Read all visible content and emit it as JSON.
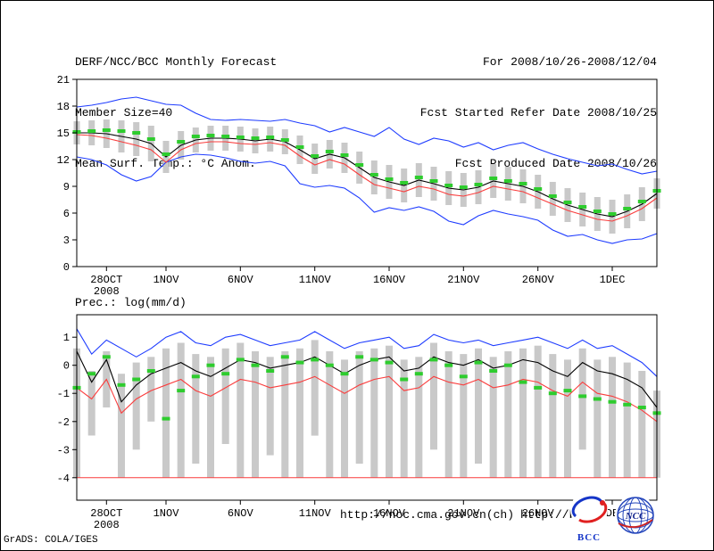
{
  "header": {
    "title": "DERF/NCC/BCC Monthly Forecast",
    "member_size": "Member Size=40",
    "temp_label": "Mean Surf. Temp.: °C Anom.",
    "for_range": "For 2008/10/26-2008/12/04",
    "refer_date": "Fcst Started Refer Date 2008/10/25",
    "produced_date": "Fcst Produced Date 2008/10/26"
  },
  "precip_label": "Prec.: log(mm/d)",
  "footer": {
    "grads_credit": "GrADS: COLA/IGES",
    "url_ncc": "http://ncc.cma.gov.cn(ch)",
    "url_bcc": "http://bcc.c",
    "bcc_logo_text": "BCC",
    "ncc_logo_text": "NCC"
  },
  "colors": {
    "envelope_blue": "#1e3cff",
    "mean_black": "#000000",
    "reference_red": "#fa3c3c",
    "marker_green": "#2ecc2e",
    "bar_gray": "#c9c9c9"
  },
  "chart_data": [
    {
      "type": "line",
      "title": "Mean Surf. Temp.: °C Anom.",
      "xlabel": "",
      "ylabel": "",
      "grid": false,
      "ylim": [
        0,
        21
      ],
      "yticks": [
        0,
        3,
        6,
        9,
        12,
        15,
        18,
        21
      ],
      "n_points": 40,
      "xticks": [
        {
          "index": 2,
          "label": "28OCT",
          "sublabel": "2008"
        },
        {
          "index": 6,
          "label": "1NOV"
        },
        {
          "index": 11,
          "label": "6NOV"
        },
        {
          "index": 16,
          "label": "11NOV"
        },
        {
          "index": 21,
          "label": "16NOV"
        },
        {
          "index": 26,
          "label": "21NOV"
        },
        {
          "index": 31,
          "label": "26NOV"
        },
        {
          "index": 36,
          "label": "1DEC"
        }
      ],
      "bars": {
        "name": "member-spread-bar",
        "color": "#c9c9c9",
        "upper": [
          16.3,
          16.4,
          16.5,
          16.4,
          16.2,
          15.8,
          14.1,
          15.2,
          15.6,
          15.8,
          15.8,
          15.7,
          15.5,
          15.7,
          15.4,
          14.7,
          13.8,
          14.2,
          13.9,
          12.9,
          11.9,
          11.4,
          11.0,
          11.6,
          11.2,
          10.7,
          10.5,
          10.8,
          11.5,
          11.2,
          10.9,
          10.3,
          9.5,
          8.8,
          8.3,
          7.8,
          7.5,
          8.1,
          8.9,
          9.9
        ],
        "lower": [
          13.7,
          13.6,
          13.3,
          12.8,
          12.4,
          11.8,
          10.5,
          12.0,
          12.8,
          13.0,
          13.0,
          12.9,
          12.7,
          12.9,
          12.6,
          11.5,
          10.4,
          11.0,
          10.5,
          9.3,
          8.1,
          7.6,
          7.2,
          7.8,
          7.4,
          6.9,
          6.7,
          7.0,
          7.7,
          7.4,
          7.1,
          6.5,
          5.7,
          5.0,
          4.5,
          4.0,
          3.7,
          4.3,
          5.1,
          6.5
        ]
      },
      "series": [
        {
          "name": "upper-bound-line",
          "color": "#1e3cff",
          "values": [
            17.9,
            18.1,
            18.4,
            18.8,
            19.0,
            18.6,
            18.2,
            18.1,
            17.2,
            16.5,
            16.4,
            16.5,
            16.4,
            16.3,
            16.5,
            16.1,
            15.8,
            15.1,
            15.6,
            15.1,
            14.6,
            15.6,
            14.3,
            13.7,
            14.4,
            14.1,
            13.4,
            13.9,
            13.1,
            13.6,
            13.9,
            13.2,
            12.6,
            12.1,
            11.7,
            11.3,
            11.5,
            10.9,
            10.4,
            10.7
          ]
        },
        {
          "name": "lower-bound-line",
          "color": "#1e3cff",
          "values": [
            12.3,
            12.0,
            11.4,
            10.3,
            9.6,
            10.1,
            11.7,
            12.3,
            12.6,
            12.5,
            12.2,
            11.8,
            11.6,
            11.8,
            11.3,
            9.3,
            8.9,
            9.1,
            8.8,
            7.7,
            6.1,
            6.6,
            6.3,
            6.7,
            6.2,
            5.1,
            4.7,
            5.7,
            6.3,
            5.9,
            5.6,
            5.2,
            4.1,
            3.4,
            3.6,
            3.0,
            2.6,
            3.0,
            3.1,
            3.7
          ]
        },
        {
          "name": "ensemble-mean-line",
          "color": "#000000",
          "values": [
            15.0,
            15.0,
            14.9,
            14.6,
            14.3,
            13.8,
            12.3,
            13.6,
            14.2,
            14.4,
            14.4,
            14.3,
            14.1,
            14.3,
            14.0,
            13.1,
            12.1,
            12.6,
            12.2,
            11.1,
            10.0,
            9.5,
            9.1,
            9.7,
            9.3,
            8.8,
            8.6,
            8.9,
            9.6,
            9.3,
            9.0,
            8.4,
            7.6,
            6.9,
            6.4,
            5.9,
            5.6,
            6.2,
            7.0,
            8.2
          ]
        },
        {
          "name": "red-reference-line",
          "color": "#fa3c3c",
          "values": [
            14.8,
            14.7,
            14.4,
            14.0,
            13.6,
            13.1,
            11.7,
            13.1,
            13.8,
            14.0,
            14.0,
            13.8,
            13.7,
            13.9,
            13.6,
            12.4,
            11.4,
            12.0,
            11.5,
            10.3,
            9.2,
            8.8,
            8.4,
            9.0,
            8.7,
            8.1,
            7.9,
            8.3,
            9.0,
            8.7,
            8.4,
            7.7,
            7.0,
            6.3,
            5.8,
            5.3,
            5.1,
            5.7,
            6.5,
            7.7
          ]
        }
      ],
      "markers": {
        "name": "green-dash-marker",
        "color": "#2ecc2e",
        "values": [
          15.1,
          15.2,
          15.3,
          15.2,
          15.0,
          14.3,
          12.6,
          14.0,
          14.6,
          14.7,
          14.6,
          14.5,
          14.4,
          14.5,
          14.2,
          13.4,
          12.4,
          12.9,
          12.5,
          11.4,
          10.3,
          9.8,
          9.4,
          10.0,
          9.6,
          9.1,
          8.9,
          9.2,
          9.9,
          9.6,
          9.3,
          8.7,
          7.9,
          7.2,
          6.7,
          6.2,
          5.9,
          6.5,
          7.3,
          8.5
        ]
      }
    },
    {
      "type": "line",
      "title": "Prec.: log(mm/d)",
      "xlabel": "",
      "ylabel": "",
      "grid": false,
      "ylim": [
        -4.8,
        1.8
      ],
      "yticks": [
        -4,
        -3,
        -2,
        -1,
        0,
        1
      ],
      "n_points": 40,
      "hline": {
        "y": -4,
        "color": "#fa3c3c"
      },
      "xticks": [
        {
          "index": 2,
          "label": "28OCT",
          "sublabel": "2008"
        },
        {
          "index": 6,
          "label": "1NOV"
        },
        {
          "index": 11,
          "label": "6NOV"
        },
        {
          "index": 16,
          "label": "11NOV"
        },
        {
          "index": 21,
          "label": "16NOV"
        },
        {
          "index": 26,
          "label": "21NOV"
        },
        {
          "index": 31,
          "label": "26NOV"
        },
        {
          "index": 36,
          "label": "1DEC"
        }
      ],
      "bars": {
        "name": "member-spread-bar",
        "color": "#c9c9c9",
        "upper": [
          0.6,
          -0.2,
          0.5,
          -0.3,
          0.1,
          0.3,
          0.6,
          0.8,
          0.4,
          0.3,
          0.6,
          0.8,
          0.5,
          0.3,
          0.5,
          0.6,
          0.9,
          0.5,
          0.2,
          0.5,
          0.6,
          0.7,
          0.2,
          0.3,
          0.8,
          0.5,
          0.4,
          0.6,
          0.3,
          0.5,
          0.6,
          0.7,
          0.4,
          0.2,
          0.6,
          0.2,
          0.3,
          0.1,
          -0.2,
          -0.9
        ],
        "lower": [
          -4.0,
          -2.5,
          -1.5,
          -4.0,
          -3.0,
          -2.0,
          -4.0,
          -4.0,
          -3.5,
          -4.0,
          -2.8,
          -4.0,
          -4.0,
          -3.2,
          -4.0,
          -4.0,
          -2.5,
          -4.0,
          -4.0,
          -3.5,
          -4.0,
          -4.0,
          -4.0,
          -4.0,
          -3.0,
          -4.0,
          -4.0,
          -3.5,
          -4.0,
          -4.0,
          -4.0,
          -4.0,
          -4.0,
          -4.0,
          -3.0,
          -4.0,
          -4.0,
          -4.0,
          -4.0,
          -4.0
        ]
      },
      "series": [
        {
          "name": "upper-bound-line",
          "color": "#1e3cff",
          "values": [
            1.3,
            0.4,
            0.9,
            0.6,
            0.3,
            0.6,
            1.0,
            1.2,
            0.8,
            0.7,
            1.0,
            1.1,
            0.9,
            0.7,
            0.8,
            0.9,
            1.2,
            0.9,
            0.6,
            0.8,
            0.9,
            1.0,
            0.6,
            0.7,
            1.1,
            0.9,
            0.8,
            0.9,
            0.7,
            0.8,
            0.9,
            1.0,
            0.8,
            0.6,
            0.9,
            0.6,
            0.7,
            0.4,
            0.1,
            -0.4
          ]
        },
        {
          "name": "ensemble-mean-line",
          "color": "#000000",
          "values": [
            0.5,
            -0.6,
            0.2,
            -1.3,
            -0.7,
            -0.3,
            -0.1,
            0.1,
            -0.2,
            -0.4,
            -0.1,
            0.2,
            0.1,
            -0.1,
            0.0,
            0.1,
            0.3,
            0.0,
            -0.3,
            0.0,
            0.2,
            0.3,
            -0.2,
            -0.1,
            0.3,
            0.1,
            0.0,
            0.2,
            -0.1,
            0.0,
            0.2,
            0.1,
            -0.2,
            -0.4,
            0.1,
            -0.2,
            -0.3,
            -0.5,
            -0.8,
            -1.5
          ]
        },
        {
          "name": "red-reference-line",
          "color": "#fa3c3c",
          "values": [
            -0.8,
            -1.2,
            -0.5,
            -1.7,
            -1.2,
            -0.9,
            -0.7,
            -0.5,
            -0.9,
            -1.1,
            -0.8,
            -0.5,
            -0.6,
            -0.8,
            -0.7,
            -0.6,
            -0.4,
            -0.7,
            -1.0,
            -0.7,
            -0.5,
            -0.4,
            -0.9,
            -0.8,
            -0.4,
            -0.6,
            -0.7,
            -0.5,
            -0.8,
            -0.7,
            -0.5,
            -0.6,
            -0.9,
            -1.1,
            -0.6,
            -1.0,
            -1.1,
            -1.3,
            -1.6,
            -2.0
          ]
        }
      ],
      "markers": {
        "name": "green-dash-marker",
        "color": "#2ecc2e",
        "values": [
          -0.8,
          -0.3,
          0.3,
          -0.7,
          -0.5,
          -0.2,
          -1.9,
          -0.9,
          -0.4,
          0.0,
          -0.3,
          0.2,
          0.0,
          -0.2,
          0.3,
          0.1,
          0.2,
          0.0,
          -0.3,
          0.3,
          0.2,
          0.1,
          -0.5,
          -0.3,
          0.2,
          0.0,
          -0.4,
          0.1,
          -0.2,
          0.0,
          -0.6,
          -0.8,
          -1.0,
          -0.9,
          -1.1,
          -1.2,
          -1.3,
          -1.4,
          -1.5,
          -1.7
        ]
      }
    }
  ]
}
